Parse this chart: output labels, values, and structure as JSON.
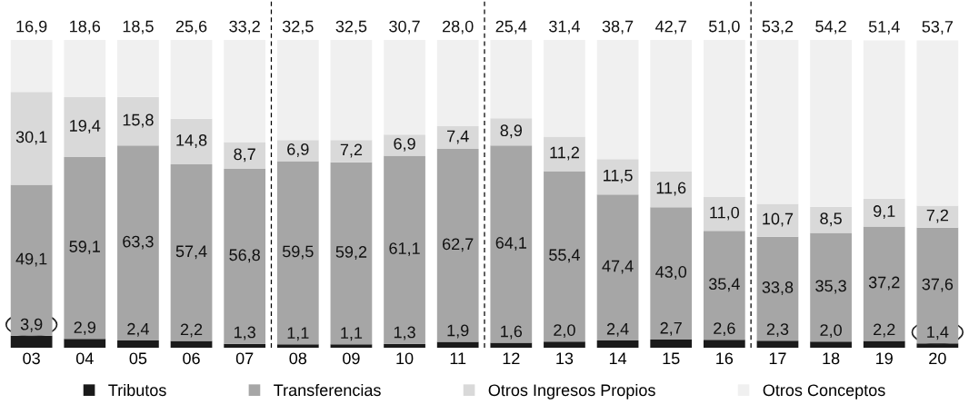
{
  "chart_data": {
    "type": "bar",
    "stacked": true,
    "tick_labels": "x",
    "x": [
      3,
      4,
      5,
      6,
      7,
      8,
      9,
      10,
      11,
      12,
      13,
      14,
      15,
      16,
      17,
      18,
      19,
      20
    ],
    "xticks": [
      {
        "value": 3,
        "label": "03"
      },
      {
        "value": 4,
        "label": "04"
      },
      {
        "value": 5,
        "label": "05"
      },
      {
        "value": 6,
        "label": "06"
      },
      {
        "value": 7,
        "label": "07"
      },
      {
        "value": 8,
        "label": "08"
      },
      {
        "value": 9,
        "label": "09"
      },
      {
        "value": 10,
        "label": "10"
      },
      {
        "value": 11,
        "label": "11"
      },
      {
        "value": 12,
        "label": "12"
      },
      {
        "value": 13,
        "label": "13"
      },
      {
        "value": 14,
        "label": "14"
      },
      {
        "value": 15,
        "label": "15"
      },
      {
        "value": 16,
        "label": "16"
      },
      {
        "value": 17,
        "label": "17"
      },
      {
        "value": 18,
        "label": "18"
      },
      {
        "value": 19,
        "label": "19"
      },
      {
        "value": 20,
        "label": "20"
      }
    ],
    "xlim": [
      2.5,
      20.5
    ],
    "series": [
      {
        "name": "Tributos",
        "color": "#1a1a1a",
        "values": [
          3.9,
          2.9,
          2.4,
          2.2,
          1.3,
          1.1,
          1.1,
          1.3,
          1.9,
          1.6,
          2.0,
          2.4,
          2.7,
          2.6,
          2.3,
          2.0,
          2.2,
          1.4
        ],
        "value_labels": [
          "3,9",
          "2,9",
          "2,4",
          "2,2",
          "1,3",
          "1,1",
          "1,1",
          "1,3",
          "1,9",
          "1,6",
          "2,0",
          "2,4",
          "2,7",
          "2,6",
          "2,3",
          "2,0",
          "2,2",
          "1,4"
        ]
      },
      {
        "name": "Transferencias",
        "color": "#a6a6a6",
        "values": [
          49.1,
          59.1,
          63.3,
          57.4,
          56.8,
          59.5,
          59.2,
          61.1,
          62.7,
          64.1,
          55.4,
          47.4,
          43.0,
          35.4,
          33.8,
          35.3,
          37.2,
          37.6
        ],
        "value_labels": [
          "49,1",
          "59,1",
          "63,3",
          "57,4",
          "56,8",
          "59,5",
          "59,2",
          "61,1",
          "62,7",
          "64,1",
          "55,4",
          "47,4",
          "43,0",
          "35,4",
          "33,8",
          "35,3",
          "37,2",
          "37,6"
        ]
      },
      {
        "name": "Otros Ingresos Propios",
        "color": "#d9d9d9",
        "values": [
          30.1,
          19.4,
          15.8,
          14.8,
          8.7,
          6.9,
          7.2,
          6.9,
          7.4,
          8.9,
          11.2,
          11.5,
          11.6,
          11.0,
          10.7,
          8.5,
          9.1,
          7.2
        ],
        "value_labels": [
          "30,1",
          "19,4",
          "15,8",
          "14,8",
          "8,7",
          "6,9",
          "7,2",
          "6,9",
          "7,4",
          "8,9",
          "11,2",
          "11,5",
          "11,6",
          "11,0",
          "10,7",
          "8,5",
          "9,1",
          "7,2"
        ]
      },
      {
        "name": "Otros Conceptos",
        "color": "#f0f0f0",
        "values": [
          16.9,
          18.6,
          18.5,
          25.6,
          33.2,
          32.5,
          32.5,
          30.7,
          28.0,
          25.4,
          31.4,
          38.7,
          42.7,
          51.0,
          53.2,
          54.2,
          51.4,
          53.7
        ],
        "value_labels": [
          "16,9",
          "18,6",
          "18,5",
          "25,6",
          "33,2",
          "32,5",
          "32,5",
          "30,7",
          "28,0",
          "25,4",
          "31,4",
          "38,7",
          "42,7",
          "51,0",
          "53,2",
          "54,2",
          "51,4",
          "53,7"
        ]
      }
    ],
    "ref_lines": [
      {
        "axis": "x",
        "value": 7.5,
        "line_style": "dashed",
        "color": "#000000"
      },
      {
        "axis": "x",
        "value": 11.5,
        "line_style": "dashed",
        "color": "#000000"
      },
      {
        "axis": "x",
        "value": 16.5,
        "line_style": "dashed",
        "color": "#000000"
      }
    ],
    "legend": "bottom",
    "grid": false
  }
}
